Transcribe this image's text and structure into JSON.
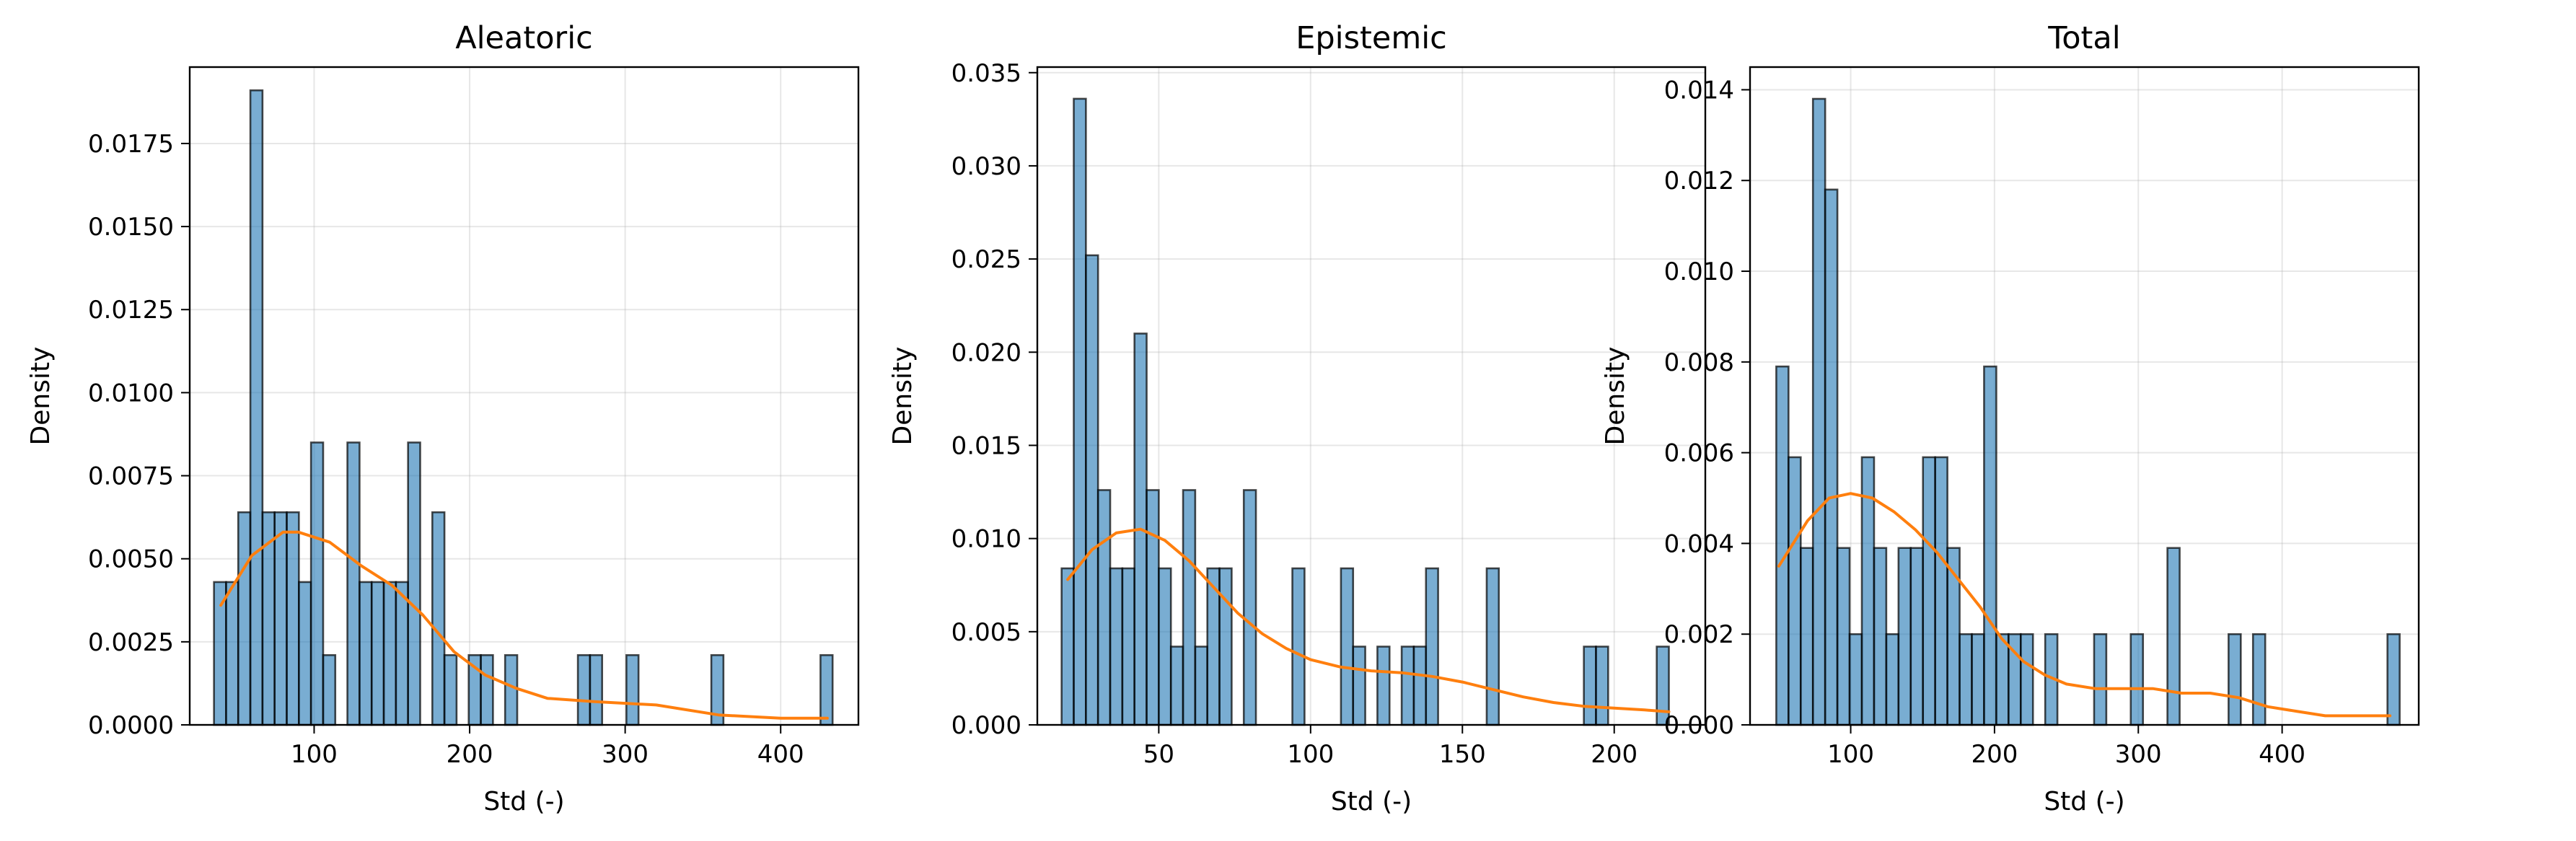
{
  "chart_data": [
    {
      "type": "bar",
      "subtype": "histogram-with-kde",
      "title": "Aleatoric",
      "xlabel": "Std (-)",
      "ylabel": "Density",
      "xlim": [
        20,
        450
      ],
      "ylim": [
        0,
        0.0198
      ],
      "xticks": [
        100,
        200,
        300,
        400
      ],
      "xtick_labels": [
        "100",
        "200",
        "300",
        "400"
      ],
      "yticks": [
        0,
        0.0025,
        0.005,
        0.0075,
        0.01,
        0.0125,
        0.015,
        0.0175
      ],
      "ytick_labels": [
        "0.0000",
        "0.0025",
        "0.0050",
        "0.0075",
        "0.0100",
        "0.0125",
        "0.0150",
        "0.0175"
      ],
      "grid": true,
      "bin_width": 7.8,
      "bins": [
        {
          "x": 39.5,
          "density": 0.0043
        },
        {
          "x": 47.3,
          "density": 0.0043
        },
        {
          "x": 55.1,
          "density": 0.0064
        },
        {
          "x": 62.9,
          "density": 0.0191
        },
        {
          "x": 70.7,
          "density": 0.0064
        },
        {
          "x": 78.5,
          "density": 0.0064
        },
        {
          "x": 86.3,
          "density": 0.0064
        },
        {
          "x": 94.1,
          "density": 0.0043
        },
        {
          "x": 101.9,
          "density": 0.0085
        },
        {
          "x": 109.7,
          "density": 0.0021
        },
        {
          "x": 125.3,
          "density": 0.0085
        },
        {
          "x": 133.1,
          "density": 0.0043
        },
        {
          "x": 140.9,
          "density": 0.0043
        },
        {
          "x": 148.7,
          "density": 0.0043
        },
        {
          "x": 156.5,
          "density": 0.0043
        },
        {
          "x": 164.3,
          "density": 0.0085
        },
        {
          "x": 179.9,
          "density": 0.0064
        },
        {
          "x": 187.7,
          "density": 0.0021
        },
        {
          "x": 203.3,
          "density": 0.0021
        },
        {
          "x": 211.1,
          "density": 0.0021
        },
        {
          "x": 226.7,
          "density": 0.0021
        },
        {
          "x": 273.5,
          "density": 0.0021
        },
        {
          "x": 281.3,
          "density": 0.0021
        },
        {
          "x": 304.7,
          "density": 0.0021
        },
        {
          "x": 359.3,
          "density": 0.0021
        },
        {
          "x": 429.5,
          "density": 0.0021
        }
      ],
      "kde": {
        "x": [
          40,
          60,
          80,
          90,
          110,
          130,
          150,
          170,
          190,
          210,
          230,
          250,
          280,
          320,
          360,
          400,
          430
        ],
        "y": [
          0.0036,
          0.0051,
          0.0058,
          0.0058,
          0.0055,
          0.0048,
          0.0042,
          0.0033,
          0.0022,
          0.0015,
          0.0011,
          0.0008,
          0.0007,
          0.0006,
          0.0003,
          0.0002,
          0.0002
        ]
      }
    },
    {
      "type": "bar",
      "subtype": "histogram-with-kde",
      "title": "Epistemic",
      "xlabel": "Std (-)",
      "ylabel": "Density",
      "xlim": [
        10,
        230
      ],
      "ylim": [
        0,
        0.0353
      ],
      "xticks": [
        50,
        100,
        150,
        200
      ],
      "xtick_labels": [
        "50",
        "100",
        "150",
        "200"
      ],
      "yticks": [
        0,
        0.005,
        0.01,
        0.015,
        0.02,
        0.025,
        0.03,
        0.035
      ],
      "ytick_labels": [
        "0.000",
        "0.005",
        "0.010",
        "0.015",
        "0.020",
        "0.025",
        "0.030",
        "0.035"
      ],
      "grid": true,
      "bin_width": 4.0,
      "bins": [
        {
          "x": 20,
          "density": 0.0084
        },
        {
          "x": 24,
          "density": 0.0336
        },
        {
          "x": 28,
          "density": 0.0252
        },
        {
          "x": 32,
          "density": 0.0126
        },
        {
          "x": 36,
          "density": 0.0084
        },
        {
          "x": 40,
          "density": 0.0084
        },
        {
          "x": 44,
          "density": 0.021
        },
        {
          "x": 48,
          "density": 0.0126
        },
        {
          "x": 52,
          "density": 0.0084
        },
        {
          "x": 56,
          "density": 0.0042
        },
        {
          "x": 60,
          "density": 0.0126
        },
        {
          "x": 64,
          "density": 0.0042
        },
        {
          "x": 68,
          "density": 0.0084
        },
        {
          "x": 72,
          "density": 0.0084
        },
        {
          "x": 80,
          "density": 0.0126
        },
        {
          "x": 96,
          "density": 0.0084
        },
        {
          "x": 112,
          "density": 0.0084
        },
        {
          "x": 116,
          "density": 0.0042
        },
        {
          "x": 124,
          "density": 0.0042
        },
        {
          "x": 132,
          "density": 0.0042
        },
        {
          "x": 136,
          "density": 0.0042
        },
        {
          "x": 140,
          "density": 0.0084
        },
        {
          "x": 160,
          "density": 0.0084
        },
        {
          "x": 192,
          "density": 0.0042
        },
        {
          "x": 196,
          "density": 0.0042
        },
        {
          "x": 216,
          "density": 0.0042
        }
      ],
      "kde": {
        "x": [
          20,
          28,
          36,
          44,
          52,
          60,
          68,
          76,
          84,
          92,
          100,
          110,
          120,
          130,
          140,
          150,
          160,
          170,
          180,
          190,
          200,
          210,
          218
        ],
        "y": [
          0.0078,
          0.0094,
          0.0103,
          0.0105,
          0.0099,
          0.0088,
          0.0074,
          0.006,
          0.0049,
          0.0041,
          0.0035,
          0.0031,
          0.0029,
          0.0028,
          0.0026,
          0.0023,
          0.0019,
          0.0015,
          0.0012,
          0.001,
          0.0009,
          0.0008,
          0.0007
        ]
      }
    },
    {
      "type": "bar",
      "subtype": "histogram-with-kde",
      "title": "Total",
      "xlabel": "Std (-)",
      "ylabel": "Density",
      "xlim": [
        30,
        495
      ],
      "ylim": [
        0,
        0.0145
      ],
      "xticks": [
        100,
        200,
        300,
        400
      ],
      "xtick_labels": [
        "100",
        "200",
        "300",
        "400"
      ],
      "yticks": [
        0,
        0.002,
        0.004,
        0.006,
        0.008,
        0.01,
        0.012,
        0.014
      ],
      "ytick_labels": [
        "0.000",
        "0.002",
        "0.004",
        "0.006",
        "0.008",
        "0.010",
        "0.012",
        "0.014"
      ],
      "grid": true,
      "bin_width": 8.5,
      "bins": [
        {
          "x": 52.5,
          "density": 0.0079
        },
        {
          "x": 61,
          "density": 0.0059
        },
        {
          "x": 69.5,
          "density": 0.0039
        },
        {
          "x": 78,
          "density": 0.0138
        },
        {
          "x": 86.5,
          "density": 0.0118
        },
        {
          "x": 95,
          "density": 0.0039
        },
        {
          "x": 103.5,
          "density": 0.002
        },
        {
          "x": 112,
          "density": 0.0059
        },
        {
          "x": 120.5,
          "density": 0.0039
        },
        {
          "x": 129,
          "density": 0.002
        },
        {
          "x": 137.5,
          "density": 0.0039
        },
        {
          "x": 146,
          "density": 0.0039
        },
        {
          "x": 154.5,
          "density": 0.0059
        },
        {
          "x": 163,
          "density": 0.0059
        },
        {
          "x": 171.5,
          "density": 0.0039
        },
        {
          "x": 180,
          "density": 0.002
        },
        {
          "x": 188.5,
          "density": 0.002
        },
        {
          "x": 197,
          "density": 0.0079
        },
        {
          "x": 205.5,
          "density": 0.002
        },
        {
          "x": 214,
          "density": 0.002
        },
        {
          "x": 222.5,
          "density": 0.002
        },
        {
          "x": 239.5,
          "density": 0.002
        },
        {
          "x": 273.5,
          "density": 0.002
        },
        {
          "x": 299,
          "density": 0.002
        },
        {
          "x": 324.5,
          "density": 0.0039
        },
        {
          "x": 367,
          "density": 0.002
        },
        {
          "x": 384,
          "density": 0.002
        },
        {
          "x": 477.5,
          "density": 0.002
        }
      ],
      "kde": {
        "x": [
          50,
          70,
          85,
          100,
          115,
          130,
          145,
          160,
          175,
          190,
          205,
          220,
          235,
          250,
          270,
          290,
          310,
          330,
          350,
          370,
          390,
          410,
          430,
          450,
          475
        ],
        "y": [
          0.0035,
          0.0045,
          0.005,
          0.0051,
          0.005,
          0.0047,
          0.0043,
          0.0038,
          0.0032,
          0.0026,
          0.0019,
          0.0014,
          0.0011,
          0.0009,
          0.0008,
          0.0008,
          0.0008,
          0.0007,
          0.0007,
          0.0006,
          0.0004,
          0.0003,
          0.0002,
          0.0002,
          0.0002
        ]
      }
    }
  ]
}
